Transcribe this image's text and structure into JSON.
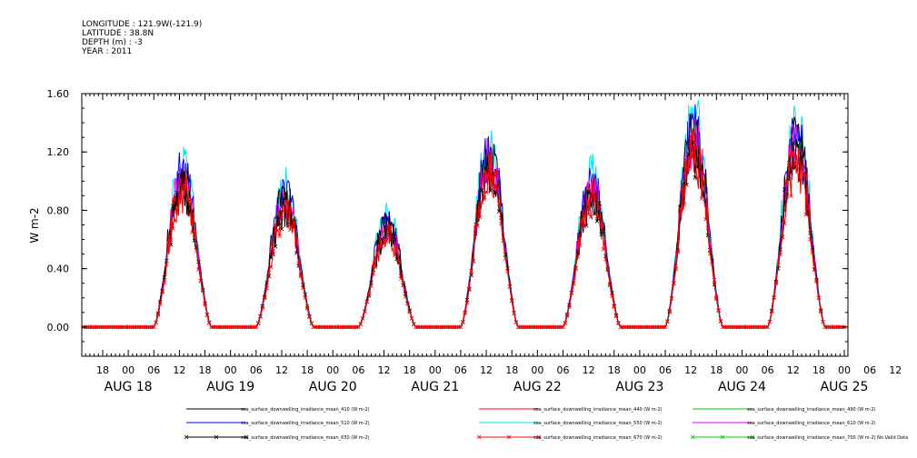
{
  "header": {
    "lines": [
      "LONGITUDE : 121.9W(-121.9)",
      "LATITUDE : 38.8N",
      "DEPTH (m) : -3",
      "YEAR : 2011"
    ]
  },
  "colors": {
    "410": "#000000",
    "440": "#ff0000",
    "490": "#00cc00",
    "510": "#0000ff",
    "550": "#00e5e5",
    "610": "#e600e6",
    "650": "#000000",
    "670": "#ff0000",
    "700": "#00cc00"
  },
  "chart_data": {
    "type": "line",
    "ylabel": "W m-2",
    "ylim": [
      -0.2,
      1.6
    ],
    "yticks": [
      0.0,
      0.4,
      0.8,
      1.2,
      1.6
    ],
    "ytick_labels": [
      "0.00",
      "0.40",
      "0.80",
      "1.20",
      "1.60"
    ],
    "xtick_hour_labels": [
      "18",
      "00",
      "06",
      "12",
      "18",
      "00",
      "06",
      "12",
      "18",
      "00",
      "06",
      "12",
      "18",
      "00",
      "06",
      "12",
      "18",
      "00",
      "06",
      "12",
      "18",
      "00",
      "06",
      "12",
      "18",
      "00",
      "06",
      "12",
      "18",
      "00",
      "06",
      "12"
    ],
    "date_labels": [
      "AUG 18",
      "AUG 19",
      "AUG 20",
      "AUG 21",
      "AUG 22",
      "AUG 23",
      "AUG 24",
      "AUG 25"
    ],
    "day_peaks": [
      {
        "day": "AUG 18",
        "peak": 1.22
      },
      {
        "day": "AUG 19",
        "peak": 1.04
      },
      {
        "day": "AUG 20",
        "peak": 0.83
      },
      {
        "day": "AUG 21",
        "peak": 1.37
      },
      {
        "day": "AUG 22",
        "peak": 1.13
      },
      {
        "day": "AUG 23",
        "peak": 1.55
      },
      {
        "day": "AUG 24",
        "peak": 1.5
      }
    ],
    "series": [
      {
        "name": "sea_surface_downwelling_irradiance_mean_410 (W m-2)",
        "color_key": "410",
        "scale": 1.0,
        "marker": false
      },
      {
        "name": "sea_surface_downwelling_irradiance_mean_440 (W m-2)",
        "color_key": "440",
        "scale": 0.92,
        "marker": false
      },
      {
        "name": "sea_surface_downwelling_irradiance_mean_490 (W m-2)",
        "color_key": "490",
        "scale": 0.98,
        "marker": false
      },
      {
        "name": "sea_surface_downwelling_irradiance_mean_510 (W m-2)",
        "color_key": "510",
        "scale": 1.02,
        "marker": false
      },
      {
        "name": "sea_surface_downwelling_irradiance_mean_550 (W m-2)",
        "color_key": "550",
        "scale": 1.07,
        "marker": false
      },
      {
        "name": "sea_surface_downwelling_irradiance_mean_610 (W m-2)",
        "color_key": "610",
        "scale": 0.97,
        "marker": false
      },
      {
        "name": "sea_surface_downwelling_irradiance_mean_650 (W m-2)",
        "color_key": "650",
        "scale": 0.9,
        "marker": true
      },
      {
        "name": "sea_surface_downwelling_irradiance_mean_670 (W m-2)",
        "color_key": "670",
        "scale": 0.88,
        "marker": true
      },
      {
        "name": "sea_surface_downwelling_irradiance_mean_700 (W m-2) No Valid Data",
        "color_key": "700",
        "scale": 0,
        "marker": true
      }
    ]
  }
}
